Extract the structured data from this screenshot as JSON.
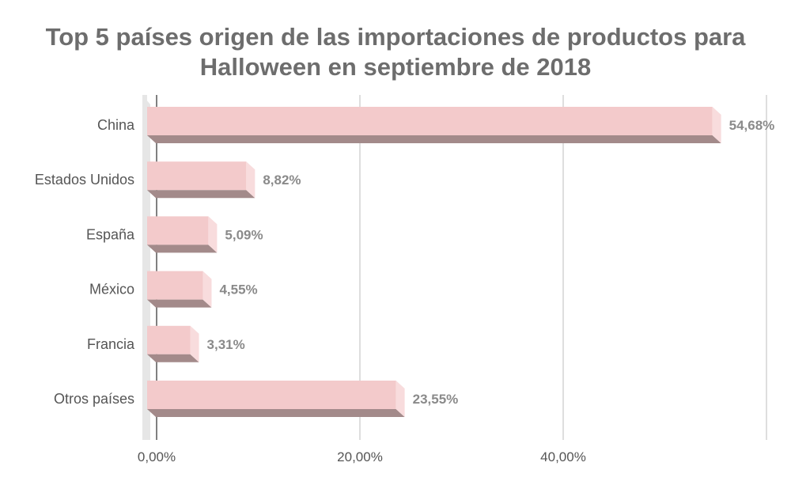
{
  "title_lines": [
    "Top 5 países origen de las importaciones de productos para",
    "Halloween en septiembre de 2018"
  ],
  "colors": {
    "bar_front": "#f3cacb",
    "bar_bottom": "#a38a8a",
    "bar_side": "#f8dcdd",
    "wall": "#e6e6e6",
    "grid": "#bdbdbd",
    "value_text": "#8a8a8a"
  },
  "chart_data": {
    "type": "bar",
    "orientation": "horizontal",
    "style": "3d",
    "title": "Top 5 países origen de las importaciones de productos para Halloween en septiembre de 2018",
    "categories": [
      "China",
      "Estados Unidos",
      "España",
      "México",
      "Francia",
      "Otros países"
    ],
    "values": [
      54.68,
      8.82,
      5.09,
      4.55,
      3.31,
      23.55
    ],
    "value_labels": [
      "54,68%",
      "8,82%",
      "5,09%",
      "4,55%",
      "3,31%",
      "23,55%"
    ],
    "xlim": [
      0,
      60
    ],
    "xticks": [
      0,
      20,
      40,
      60
    ],
    "xtick_labels": [
      "0,00%",
      "20,00%",
      "40,00%",
      ""
    ],
    "grid": true,
    "legend": "none"
  }
}
